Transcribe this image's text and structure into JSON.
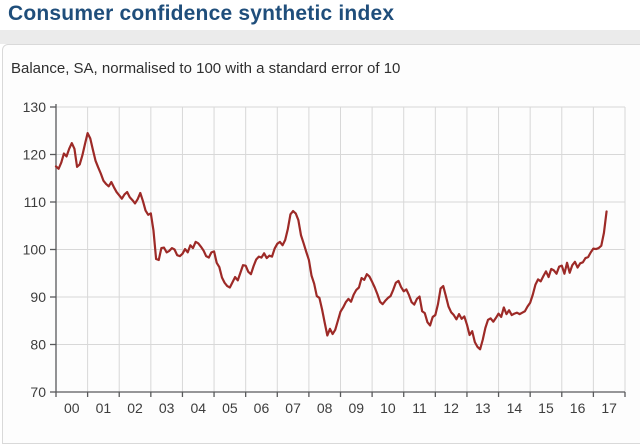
{
  "header": {
    "title": "Consumer confidence synthetic index"
  },
  "chart": {
    "subtitle": "Balance, SA, normalised to 100 with a standard error of 10"
  },
  "colors": {
    "title": "#1f4e7b",
    "subtitle": "#2f2f2f",
    "line": "#9d2a27",
    "grid": "#d8d8d8",
    "axis": "#58595b",
    "tick_label": "#3d3d3d",
    "page_bg": "#ffffff",
    "band_bg": "#ebebeb",
    "card_bg": "#fdfdfd",
    "card_border": "#d9d9d9"
  },
  "chart_data": {
    "type": "line",
    "title": "Consumer confidence synthetic index",
    "subtitle": "Balance, SA, normalised to 100 with a standard error of 10",
    "frequency": "monthly",
    "start": "2000-01",
    "end": "2017-06",
    "ylim": [
      70,
      130
    ],
    "y_ticks": [
      70,
      80,
      90,
      100,
      110,
      120,
      130
    ],
    "x_tick_labels": [
      "00",
      "01",
      "02",
      "03",
      "04",
      "05",
      "06",
      "07",
      "08",
      "09",
      "10",
      "11",
      "12",
      "13",
      "14",
      "15",
      "16",
      "17"
    ],
    "grid": true,
    "legend_position": "none",
    "series": [
      {
        "name": "Consumer confidence synthetic index (Balance, SA)",
        "values": [
          117.5,
          117.0,
          118.3,
          120.2,
          119.6,
          121.2,
          122.4,
          121.2,
          117.4,
          117.9,
          119.8,
          122.2,
          124.5,
          123.4,
          121.0,
          118.7,
          117.3,
          116.0,
          114.5,
          113.8,
          113.3,
          114.2,
          113.1,
          112.1,
          111.4,
          110.7,
          111.6,
          112.1,
          111.0,
          110.4,
          109.7,
          110.6,
          111.9,
          110.2,
          108.2,
          107.3,
          107.6,
          104.0,
          98.0,
          97.8,
          100.3,
          100.4,
          99.4,
          99.7,
          100.3,
          100.0,
          98.8,
          98.6,
          99.1,
          100.1,
          99.4,
          100.9,
          100.3,
          101.6,
          101.3,
          100.6,
          99.8,
          98.6,
          98.3,
          99.4,
          99.6,
          97.2,
          96.3,
          94.1,
          93.0,
          92.3,
          92.0,
          93.1,
          94.2,
          93.5,
          95.1,
          96.7,
          96.6,
          95.3,
          94.8,
          96.5,
          97.9,
          98.5,
          98.3,
          99.2,
          98.2,
          98.7,
          98.5,
          100.2,
          101.2,
          101.6,
          100.9,
          102.0,
          104.3,
          107.4,
          108.1,
          107.6,
          106.2,
          103.0,
          101.3,
          99.5,
          97.8,
          94.5,
          92.8,
          90.2,
          89.8,
          87.4,
          84.6,
          81.9,
          83.3,
          82.2,
          83.1,
          85.0,
          86.9,
          87.8,
          88.9,
          89.6,
          89.0,
          90.5,
          91.5,
          92.0,
          94.0,
          93.6,
          94.8,
          94.3,
          93.2,
          92.0,
          90.6,
          89.0,
          88.5,
          89.2,
          89.8,
          90.2,
          91.5,
          93.0,
          93.4,
          92.1,
          91.2,
          91.6,
          90.4,
          88.9,
          88.4,
          89.6,
          90.1,
          87.0,
          86.6,
          84.7,
          84.0,
          85.8,
          86.2,
          88.5,
          91.8,
          92.3,
          90.2,
          88.0,
          86.8,
          86.2,
          85.3,
          86.4,
          85.4,
          85.9,
          84.2,
          82.0,
          82.8,
          80.5,
          79.5,
          79.0,
          81.0,
          83.5,
          85.2,
          85.5,
          84.8,
          85.6,
          86.5,
          85.8,
          87.8,
          86.4,
          87.2,
          86.2,
          86.5,
          86.7,
          86.4,
          86.7,
          87.0,
          88.0,
          88.8,
          90.5,
          92.6,
          93.7,
          93.3,
          94.4,
          95.4,
          94.2,
          95.9,
          95.6,
          94.9,
          96.4,
          96.6,
          94.9,
          97.2,
          95.1,
          96.7,
          97.4,
          96.2,
          97.1,
          97.3,
          98.2,
          98.4,
          99.4,
          100.2,
          100.1,
          100.3,
          100.8,
          103.5,
          108.0
        ]
      }
    ]
  }
}
